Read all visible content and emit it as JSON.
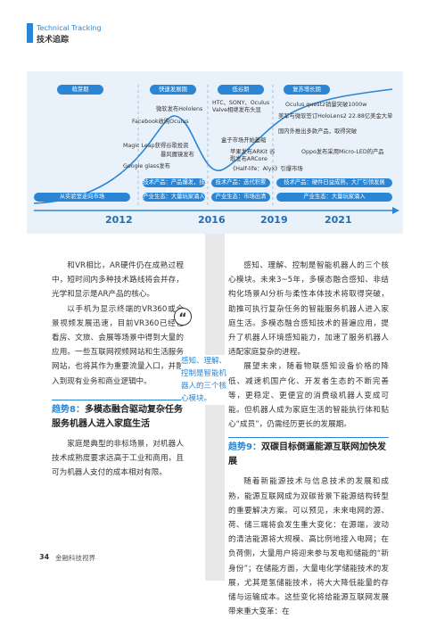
{
  "header": {
    "en": "Technical Tracking",
    "zh": "技术追踪"
  },
  "timeline": {
    "phases": [
      "萌芽期",
      "快速发展期",
      "低谷期",
      "复苏增长期"
    ],
    "events": [
      "微软发布Hololens",
      "Facebook收购Oculus",
      "Magic Leap获得谷歌投资",
      "暴风魔镜发布",
      "Google glass发布",
      "HTC、SONY、Oculus Valve相继发布头显",
      "盒子市场开始萎缩",
      "苹果发布ARKit 谷歌发布ARCore",
      "《Half-life：Alyx》引爆市场",
      "Oculus quest2销量突破1000w",
      "美军与微软签订HoloLens2 22.88亿美金大单",
      "国内外推出多款产品，取得突破",
      "Oppo发布采用Micro-LED的产品"
    ],
    "bars": [
      "从实验室走向市场",
      "技术产品：产品爆发，技术创新",
      "产业生态：大量玩家涌入",
      "技术产品：迭代积累",
      "产业生态：市场出清",
      "技术产品：硬件日益成熟，大厂引领发展",
      "产业生态：大量玩家涌入"
    ],
    "years": [
      "2012",
      "2016",
      "2019",
      "2021"
    ]
  },
  "left_column": {
    "paragraphs": [
      "和VR相比，AR硬件仍在成熟过程中，短时间内多种技术路线将会并存，光学和显示是AR产品的核心。",
      "以手机为显示终端的VR360或全景视频发展迅速，目前VR360已经在看房、文旅、会展等场景中得到大量的应用。一些互联网视频网站和生活服务网站，也将其作为重要流量入口，并融入到现有业务和商业逻辑中。"
    ],
    "heading_label": "趋势8：",
    "heading_text": "多模态融合驱动复杂任务服务机器人进入家庭生活",
    "paragraphs_after": [
      "家庭是典型的非标场景，对机器人技术成熟度要求远高于工业和商用，且可为机器人支付的成本相对有限。"
    ]
  },
  "pull_quote": "感知、理解、控制是智能机器人的三个核心模块。",
  "right_column": {
    "paragraphs": [
      "感知、理解、控制是智能机器人的三个核心模块。未来3~5年，多模态融合感知、非结构化场景AI分析与柔性本体技术将取得突破，助推可执行复杂任务的智能服务机器人进入家庭生活。多模态融合感知技术的普遍应用，提升了机器人环境感知能力，加速了服务机器人适配家庭复杂的进程。",
      "展望未来，随着物联感知设备价格的降低、减速机国产化、开发者生态的不断完善等，更稳定、更便宜的消费级机器人变成可能。但机器人成为家庭生活的智能执行体和贴心“成员”，仍需经历更长的发展期。"
    ],
    "heading_label": "趋势9：",
    "heading_text": "双碳目标倒逼能源互联网加快发展",
    "paragraphs_after": [
      "随着新能源技术与信息技术的发展和成熟，能源互联网成为双碳背景下能源结构转型的重要解决方案。可以预见，未来电网的源、荷、储三端将会发生重大变化：在源端，波动的清洁能源将大规模、高比例地接入电网；在负荷侧，大量用户将迎来参与发电和储能的“新身份”；在储能方面，大量电化学储能技术的发展，尤其是氢储能技术，将大大降低能量的存储与运输成本。这些变化将给能源互联网发展带来重大变革：在"
    ]
  },
  "footer": {
    "page": "34",
    "magazine": "金融科技视界"
  }
}
